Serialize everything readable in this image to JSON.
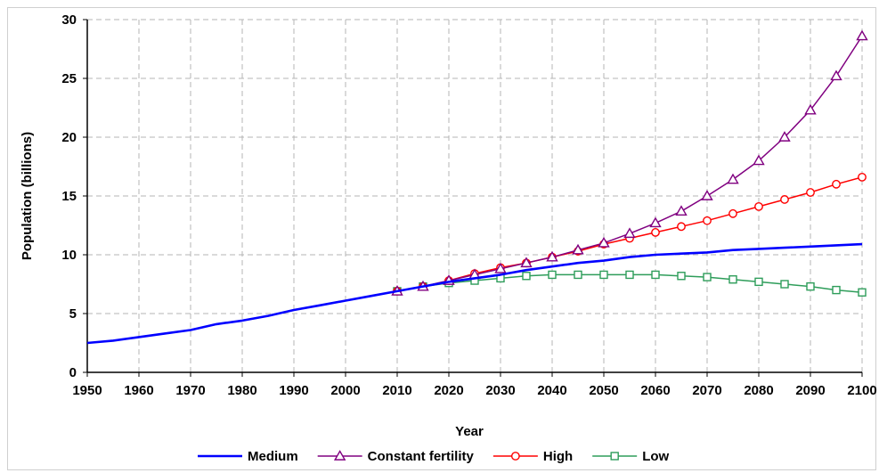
{
  "chart_data": {
    "type": "line",
    "xlabel": "Year",
    "ylabel": "Population (billions)",
    "xlim": [
      1950,
      2100
    ],
    "ylim": [
      0,
      30
    ],
    "x_ticks": [
      "1950",
      "1960",
      "1970",
      "1980",
      "1990",
      "2000",
      "2010",
      "2020",
      "2030",
      "2040",
      "2050",
      "2060",
      "2070",
      "2080",
      "2090",
      "2100"
    ],
    "y_ticks": [
      "0",
      "5",
      "10",
      "15",
      "20",
      "25",
      "30"
    ],
    "grid": true,
    "legend": "bottom",
    "series": [
      {
        "name": "Medium",
        "color": "#0000ff",
        "marker": "none",
        "x": [
          1950,
          1955,
          1960,
          1965,
          1970,
          1975,
          1980,
          1985,
          1990,
          1995,
          2000,
          2005,
          2010,
          2015,
          2020,
          2025,
          2030,
          2035,
          2040,
          2045,
          2050,
          2055,
          2060,
          2065,
          2070,
          2075,
          2080,
          2085,
          2090,
          2095,
          2100
        ],
        "y": [
          2.5,
          2.7,
          3.0,
          3.3,
          3.6,
          4.1,
          4.4,
          4.8,
          5.3,
          5.7,
          6.1,
          6.5,
          6.9,
          7.3,
          7.7,
          8.0,
          8.3,
          8.7,
          9.0,
          9.3,
          9.5,
          9.8,
          10.0,
          10.1,
          10.2,
          10.4,
          10.5,
          10.6,
          10.7,
          10.8,
          10.9
        ]
      },
      {
        "name": "Constant fertility",
        "color": "#800080",
        "marker": "triangle",
        "x": [
          2010,
          2015,
          2020,
          2025,
          2030,
          2035,
          2040,
          2045,
          2050,
          2055,
          2060,
          2065,
          2070,
          2075,
          2080,
          2085,
          2090,
          2095,
          2100
        ],
        "y": [
          6.9,
          7.3,
          7.8,
          8.3,
          8.8,
          9.3,
          9.8,
          10.4,
          11.0,
          11.8,
          12.7,
          13.7,
          15.0,
          16.4,
          18.0,
          20.0,
          22.3,
          25.2,
          28.6
        ]
      },
      {
        "name": "High",
        "color": "#ff0000",
        "marker": "circle",
        "x": [
          2010,
          2015,
          2020,
          2025,
          2030,
          2035,
          2040,
          2045,
          2050,
          2055,
          2060,
          2065,
          2070,
          2075,
          2080,
          2085,
          2090,
          2095,
          2100
        ],
        "y": [
          6.9,
          7.3,
          7.8,
          8.4,
          8.9,
          9.3,
          9.8,
          10.3,
          10.9,
          11.4,
          11.9,
          12.4,
          12.9,
          13.5,
          14.1,
          14.7,
          15.3,
          16.0,
          16.6
        ]
      },
      {
        "name": "Low",
        "color": "#2e9d5a",
        "marker": "square",
        "x": [
          2010,
          2015,
          2020,
          2025,
          2030,
          2035,
          2040,
          2045,
          2050,
          2055,
          2060,
          2065,
          2070,
          2075,
          2080,
          2085,
          2090,
          2095,
          2100
        ],
        "y": [
          6.9,
          7.3,
          7.6,
          7.8,
          8.0,
          8.2,
          8.3,
          8.3,
          8.3,
          8.3,
          8.3,
          8.2,
          8.1,
          7.9,
          7.7,
          7.5,
          7.3,
          7.0,
          6.8
        ]
      }
    ]
  }
}
